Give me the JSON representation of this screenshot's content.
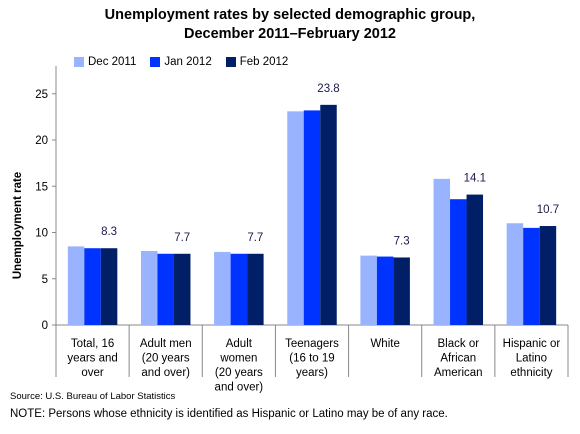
{
  "chart_data": {
    "type": "bar",
    "title_line1": "Unemployment rates by selected demographic group,",
    "title_line2": "December 2011–February 2012",
    "ylabel": "Unemployment rate",
    "xlabel": "",
    "ylim": [
      0,
      28
    ],
    "yticks": [
      0,
      5,
      10,
      15,
      20,
      25
    ],
    "grid": false,
    "legend_position": "top-left",
    "categories": [
      [
        "Total, 16",
        "years and",
        "over"
      ],
      [
        "Adult men",
        "(20 years",
        "and over)"
      ],
      [
        "Adult",
        "women",
        "(20 years",
        "and over)"
      ],
      [
        "Teenagers",
        "(16 to 19",
        "years)"
      ],
      [
        "White"
      ],
      [
        "Black or",
        "African",
        "American"
      ],
      [
        "Hispanic or",
        "Latino",
        "ethnicity"
      ]
    ],
    "series": [
      {
        "name": "Dec 2011",
        "color": "#99b3ff",
        "values": [
          8.5,
          8.0,
          7.9,
          23.1,
          7.5,
          15.8,
          11.0
        ]
      },
      {
        "name": "Jan 2012",
        "color": "#0033ff",
        "values": [
          8.3,
          7.7,
          7.7,
          23.2,
          7.4,
          13.6,
          10.5
        ]
      },
      {
        "name": "Feb 2012",
        "color": "#001f66",
        "values": [
          8.3,
          7.7,
          7.7,
          23.8,
          7.3,
          14.1,
          10.7
        ]
      }
    ],
    "data_labels": [
      "8.3",
      "7.7",
      "7.7",
      "23.8",
      "7.3",
      "14.1",
      "10.7"
    ],
    "source": "Source: U.S. Bureau of Labor Statistics",
    "note": "NOTE: Persons whose ethnicity is identified as Hispanic or Latino may be of any race."
  }
}
